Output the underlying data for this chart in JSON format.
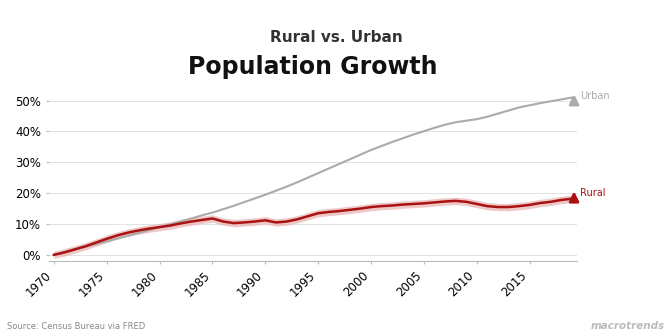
{
  "title": "Population Growth",
  "subtitle": "Rural vs. Urban",
  "source_text": "Source: Census Bureau via FRED",
  "background_color": "#ffffff",
  "plot_bg_color": "#ffffff",
  "years": [
    1970,
    1971,
    1972,
    1973,
    1974,
    1975,
    1976,
    1977,
    1978,
    1979,
    1980,
    1981,
    1982,
    1983,
    1984,
    1985,
    1986,
    1987,
    1988,
    1989,
    1990,
    1991,
    1992,
    1993,
    1994,
    1995,
    1996,
    1997,
    1998,
    1999,
    2000,
    2001,
    2002,
    2003,
    2004,
    2005,
    2006,
    2007,
    2008,
    2009,
    2010,
    2011,
    2012,
    2013,
    2014,
    2015,
    2016,
    2017,
    2018,
    2019
  ],
  "urban": [
    0.0,
    0.8,
    1.7,
    2.6,
    3.5,
    4.4,
    5.3,
    6.2,
    7.1,
    8.0,
    9.0,
    9.9,
    10.9,
    11.8,
    12.8,
    13.7,
    14.8,
    15.9,
    17.1,
    18.3,
    19.5,
    20.8,
    22.1,
    23.5,
    25.0,
    26.5,
    28.0,
    29.5,
    31.0,
    32.5,
    34.0,
    35.3,
    36.6,
    37.8,
    39.0,
    40.1,
    41.2,
    42.2,
    43.0,
    43.5,
    44.0,
    44.8,
    45.8,
    46.8,
    47.8,
    48.5,
    49.2,
    49.8,
    50.4,
    51.0
  ],
  "rural": [
    0.0,
    0.8,
    1.8,
    2.8,
    4.0,
    5.2,
    6.3,
    7.2,
    7.9,
    8.5,
    9.0,
    9.5,
    10.2,
    10.8,
    11.3,
    11.8,
    10.8,
    10.3,
    10.5,
    10.8,
    11.2,
    10.5,
    10.8,
    11.5,
    12.5,
    13.5,
    13.9,
    14.2,
    14.6,
    15.0,
    15.5,
    15.8,
    16.0,
    16.3,
    16.5,
    16.7,
    17.0,
    17.3,
    17.5,
    17.2,
    16.5,
    15.8,
    15.5,
    15.5,
    15.8,
    16.2,
    16.8,
    17.2,
    17.8,
    18.2
  ],
  "urban_color": "#aaaaaa",
  "rural_color": "#aa1111",
  "rural_fill_color": "#e8b0b0",
  "ylim": [
    -2,
    57
  ],
  "yticks": [
    0,
    10,
    20,
    30,
    40,
    50
  ],
  "ytick_labels": [
    "0%",
    "10%",
    "20%",
    "30%",
    "40%",
    "50%"
  ],
  "xticks": [
    1970,
    1975,
    1980,
    1985,
    1990,
    1995,
    2000,
    2005,
    2010,
    2015
  ],
  "title_fontsize": 17,
  "subtitle_fontsize": 11,
  "tick_fontsize": 8.5,
  "watermark": "macrotrends"
}
